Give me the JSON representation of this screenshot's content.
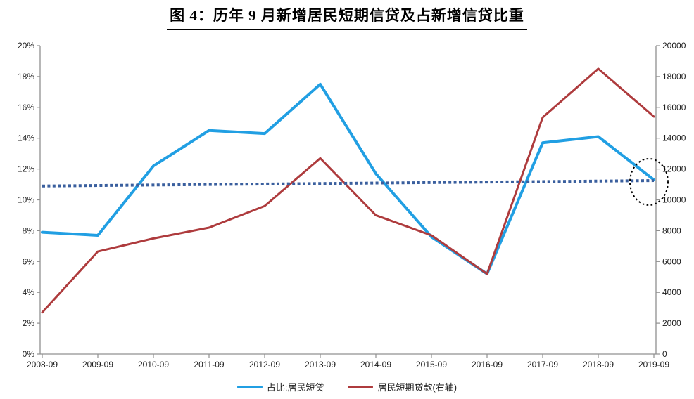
{
  "title": "图 4：历年 9 月新增居民短期信贷及占新增信贷比重",
  "legend": {
    "items": [
      {
        "label": "占比:居民短贷",
        "color": "#219FE3"
      },
      {
        "label": "居民短期贷款(右轴)",
        "color": "#AE3B3D"
      }
    ]
  },
  "chart_data": {
    "type": "line",
    "categories": [
      "2008-09",
      "2009-09",
      "2010-09",
      "2011-09",
      "2012-09",
      "2013-09",
      "2014-09",
      "2015-09",
      "2016-09",
      "2017-09",
      "2018-09",
      "2019-09"
    ],
    "series": [
      {
        "name": "占比:居民短贷",
        "axis": "left",
        "unit": "%",
        "color": "#219FE3",
        "width": 4,
        "values": [
          7.9,
          7.7,
          12.2,
          14.5,
          14.3,
          17.5,
          11.7,
          7.6,
          5.2,
          13.7,
          14.1,
          11.3
        ]
      },
      {
        "name": "居民短期贷款(右轴)",
        "axis": "right",
        "color": "#AE3B3D",
        "width": 3,
        "values": [
          2700,
          6650,
          7500,
          8200,
          9600,
          12700,
          9000,
          7700,
          5200,
          15350,
          18500,
          15400
        ]
      }
    ],
    "trendline": {
      "name": "线性趋势线",
      "axis": "left",
      "color": "#3A5F9E",
      "dashed": true,
      "start": 10.9,
      "end": 11.25
    },
    "left_axis": {
      "min": 0,
      "max": 20,
      "ticks": [
        "0%",
        "2%",
        "4%",
        "6%",
        "8%",
        "10%",
        "12%",
        "14%",
        "16%",
        "18%",
        "20%"
      ]
    },
    "right_axis": {
      "min": 0,
      "max": 20000,
      "ticks": [
        "0",
        "2000",
        "4000",
        "6000",
        "8000",
        "10000",
        "12000",
        "14000",
        "16000",
        "18000",
        "20000"
      ]
    },
    "annotation": {
      "type": "dotted-ellipse",
      "series": "占比:居民短贷",
      "category": "2019-09",
      "color": "#000000"
    },
    "grid": false,
    "legend_position": "bottom"
  }
}
